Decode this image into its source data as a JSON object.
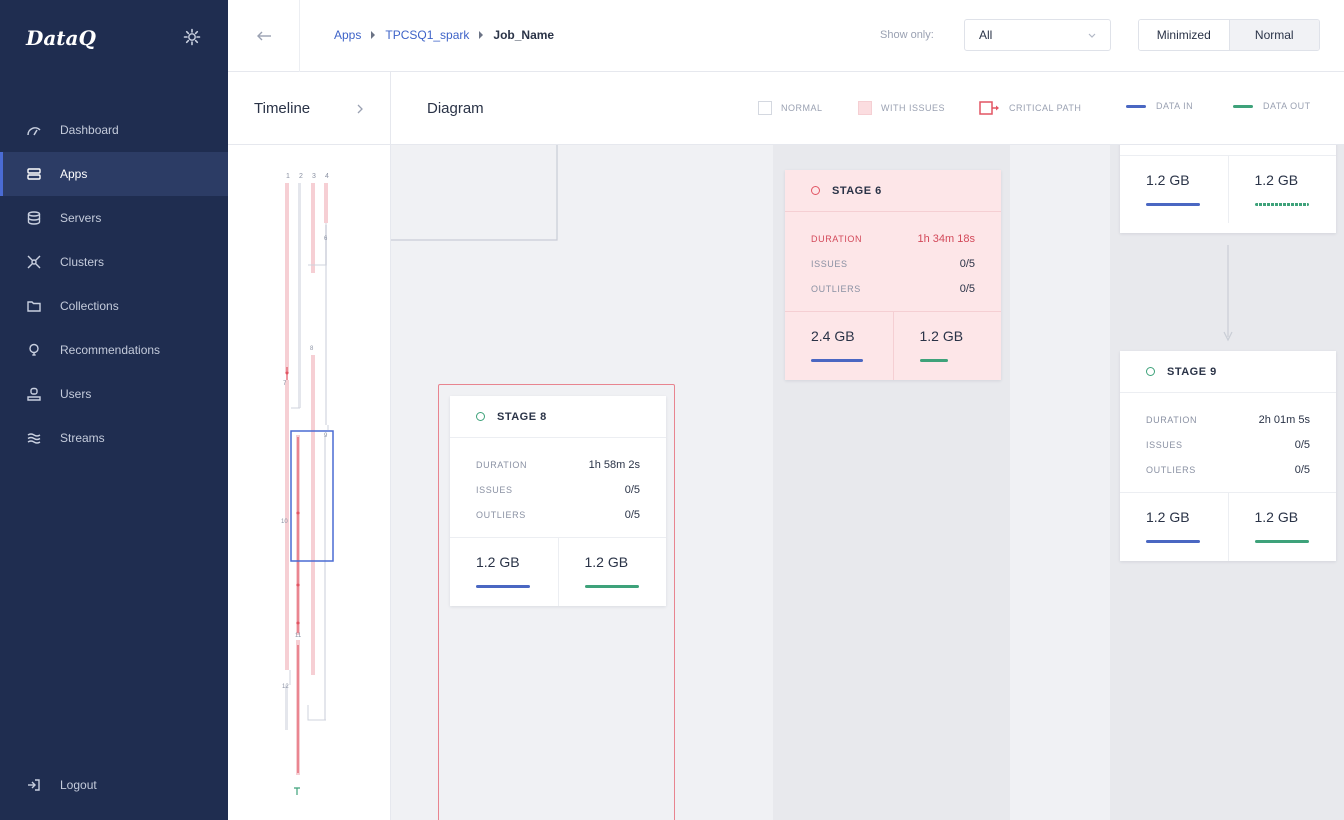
{
  "brand": {
    "name": "DataQ"
  },
  "sidebar": {
    "items": [
      {
        "label": "Dashboard",
        "icon": "dashboard-icon",
        "active": false
      },
      {
        "label": "Apps",
        "icon": "apps-icon",
        "active": true
      },
      {
        "label": "Servers",
        "icon": "servers-icon",
        "active": false
      },
      {
        "label": "Clusters",
        "icon": "clusters-icon",
        "active": false
      },
      {
        "label": "Collections",
        "icon": "collections-icon",
        "active": false
      },
      {
        "label": "Recommendations",
        "icon": "recommendations-icon",
        "active": false
      },
      {
        "label": "Users",
        "icon": "users-icon",
        "active": false
      },
      {
        "label": "Streams",
        "icon": "streams-icon",
        "active": false
      }
    ],
    "logout_label": "Logout"
  },
  "topbar": {
    "breadcrumb": [
      "Apps",
      "TPCSQ1_spark",
      "Job_Name"
    ],
    "show_only_label": "Show only:",
    "show_only_value": "All",
    "view_modes": [
      "Minimized",
      "Normal"
    ],
    "active_view_mode": "Normal"
  },
  "subheader": {
    "timeline_title": "Timeline",
    "diagram_title": "Diagram",
    "legend": {
      "normal": "NORMAL",
      "with_issues": "WITH ISSUES",
      "critical_path": "CRITICAL PATH",
      "data_in": "DATA IN",
      "data_out": "DATA OUT"
    }
  },
  "colors": {
    "sidebar_bg": "#1f2d50",
    "accent": "#3e63c8",
    "issue_bg": "#fde6e8",
    "critical": "#e25563",
    "data_in": "#4a67c2",
    "data_out": "#3ea27a"
  },
  "timeline": {
    "lane_labels": [
      "1",
      "2",
      "3",
      "4"
    ],
    "markers": [
      "6",
      "7",
      "8",
      "9",
      "10",
      "11",
      "12"
    ]
  },
  "stages": {
    "stage6": {
      "title": "STAGE 6",
      "duration_label": "DURATION",
      "duration": "1h 34m 18s",
      "issues_label": "ISSUES",
      "issues": "0/5",
      "outliers_label": "OUTLIERS",
      "outliers": "0/5",
      "data_in": "2.4 GB",
      "data_out": "1.2 GB"
    },
    "stage8": {
      "title": "STAGE 8",
      "duration_label": "DURATION",
      "duration": "1h 58m 2s",
      "issues_label": "ISSUES",
      "issues": "0/5",
      "outliers_label": "OUTLIERS",
      "outliers": "0/5",
      "data_in": "1.2 GB",
      "data_out": "1.2 GB"
    },
    "stage9": {
      "title": "STAGE 9",
      "duration_label": "DURATION",
      "duration": "2h 01m 5s",
      "issues_label": "ISSUES",
      "issues": "0/5",
      "outliers_label": "OUTLIERS",
      "outliers": "0/5",
      "data_in": "1.2 GB",
      "data_out": "1.2 GB"
    },
    "stage_top": {
      "data_in": "1.2 GB",
      "data_out": "1.2 GB"
    }
  }
}
